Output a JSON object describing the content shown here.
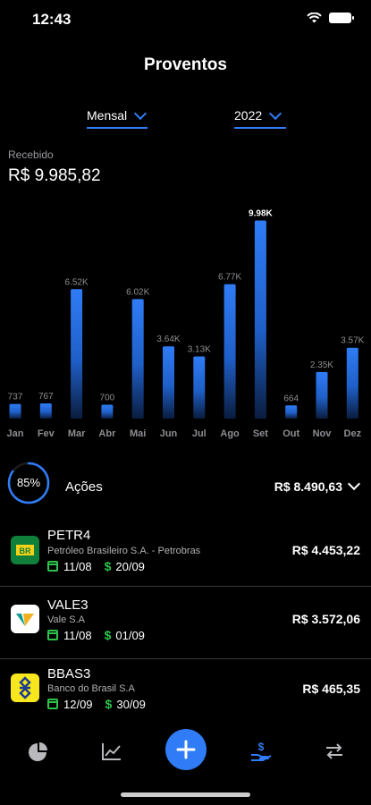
{
  "status": {
    "time": "12:43"
  },
  "header": {
    "title": "Proventos"
  },
  "filters": {
    "period": "Mensal",
    "year": "2022"
  },
  "received": {
    "label": "Recebido",
    "value": "R$ 9.985,82"
  },
  "chart_data": {
    "type": "bar",
    "categories": [
      "Jan",
      "Fev",
      "Mar",
      "Abr",
      "Mai",
      "Jun",
      "Jul",
      "Ago",
      "Set",
      "Out",
      "Nov",
      "Dez"
    ],
    "values": [
      737,
      767,
      6520,
      700,
      6020,
      3640,
      3130,
      6770,
      9980,
      664,
      2350,
      3570
    ],
    "labels": [
      "737",
      "767",
      "6.52K",
      "700",
      "6.02K",
      "3.64K",
      "3.13K",
      "6.77K",
      "9.98K",
      "664",
      "2.35K",
      "3.57K"
    ],
    "highlight_index": 8,
    "bar_color": "#2F7CF6",
    "ylim": [
      0,
      10000
    ]
  },
  "summary": {
    "percent": "85%",
    "percent_value": 0.85,
    "label": "Ações",
    "value": "R$ 8.490,63"
  },
  "assets": [
    {
      "ticker": "PETR4",
      "company": "Petróleo Brasileiro S.A. - Petrobras",
      "date_com": "11/08",
      "date_pay": "20/09",
      "value": "R$ 4.453,22",
      "logo": "petrobras-logo"
    },
    {
      "ticker": "VALE3",
      "company": "Vale S.A",
      "date_com": "11/08",
      "date_pay": "01/09",
      "value": "R$ 3.572,06",
      "logo": "vale-logo"
    },
    {
      "ticker": "BBAS3",
      "company": "Banco do Brasil S.A",
      "date_com": "12/09",
      "date_pay": "30/09",
      "value": "R$ 465,35",
      "logo": "banco-do-brasil-logo"
    }
  ],
  "tabs": [
    "pie-chart-icon",
    "line-chart-icon",
    "plus-icon",
    "dividends-icon",
    "transfer-icon"
  ],
  "colors": {
    "accent": "#2F7CF6",
    "green": "#2ec34a",
    "background": "#000000"
  }
}
